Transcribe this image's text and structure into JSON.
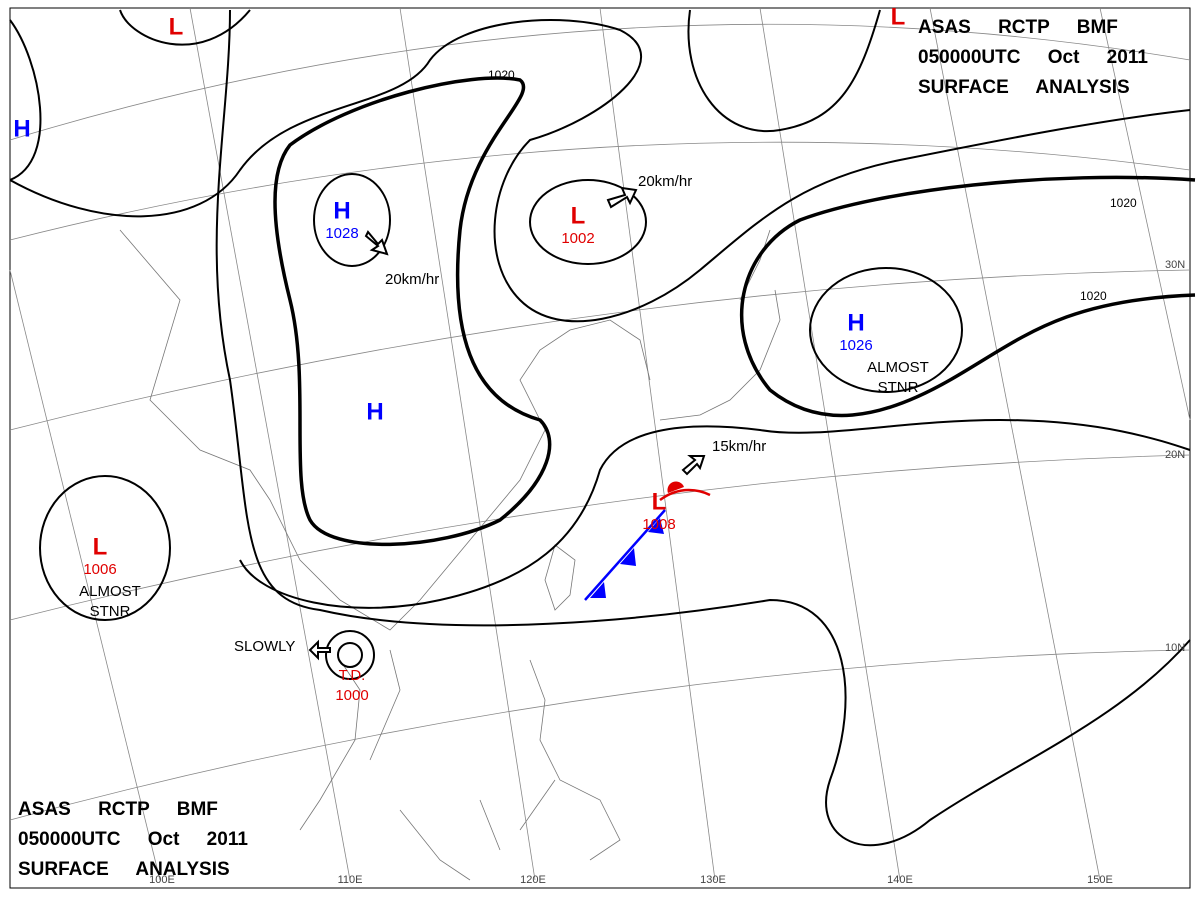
{
  "header": {
    "lines": [
      "ASAS RCTP BMF",
      "050000UTC Oct 2011",
      "SURFACE ANALYSIS"
    ]
  },
  "systems": [
    {
      "symbol": "L",
      "color": "#e00000"
    },
    {
      "symbol": "H",
      "color": "#0000ff"
    },
    {
      "symbol": "H",
      "pressure": "1028",
      "color": "#0000ff"
    },
    {
      "symbol": "L",
      "pressure": "1002",
      "color": "#e00000"
    },
    {
      "symbol": "H",
      "color": "#0000ff"
    },
    {
      "symbol": "H",
      "pressure": "1026",
      "note": [
        "ALMOST",
        "STNR"
      ],
      "color": "#0000ff"
    },
    {
      "symbol": "L",
      "pressure": "1006",
      "note": [
        "ALMOST",
        "STNR"
      ],
      "color": "#e00000"
    },
    {
      "symbol": "T.D.",
      "pressure": "1000",
      "color": "#e00000"
    },
    {
      "symbol": "L",
      "pressure": "1008",
      "color": "#e00000"
    },
    {
      "symbol": "L",
      "color": "#e00000"
    }
  ],
  "motions": [
    "20km/hr",
    "20km/hr",
    "15km/hr",
    "SLOWLY"
  ],
  "isobar_labels": [
    "1020",
    "1020",
    "1020"
  ],
  "latitudes": [
    "30N",
    "20N",
    "10N"
  ],
  "longitudes": [
    "100E",
    "110E",
    "120E",
    "130E",
    "140E",
    "150E"
  ]
}
